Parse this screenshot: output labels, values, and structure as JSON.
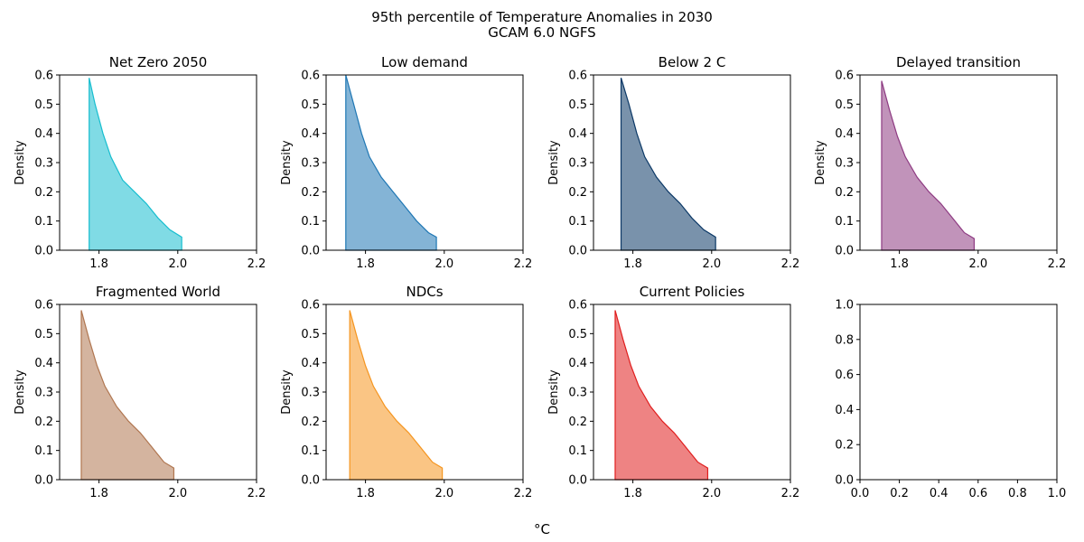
{
  "figure": {
    "suptitle_line1": "95th percentile of Temperature Anomalies in 2030",
    "suptitle_line2": "GCAM 6.0 NGFS",
    "xlabel": "°C"
  },
  "chart_data": [
    {
      "type": "area",
      "title": "Net Zero 2050",
      "ylabel": "Density",
      "color": "#17becf",
      "xlim": [
        1.7,
        2.2
      ],
      "ylim": [
        0,
        0.6
      ],
      "xticks": [
        1.8,
        2.0,
        2.2
      ],
      "yticks": [
        0.0,
        0.1,
        0.2,
        0.3,
        0.4,
        0.5,
        0.6
      ],
      "x": [
        1.775,
        1.79,
        1.81,
        1.83,
        1.86,
        1.89,
        1.92,
        1.95,
        1.98,
        2.01
      ],
      "y": [
        0.59,
        0.5,
        0.4,
        0.32,
        0.24,
        0.2,
        0.16,
        0.11,
        0.07,
        0.045
      ]
    },
    {
      "type": "area",
      "title": "Low demand",
      "ylabel": "Density",
      "color": "#1f77b4",
      "xlim": [
        1.7,
        2.2
      ],
      "ylim": [
        0,
        0.6
      ],
      "xticks": [
        1.8,
        2.0,
        2.2
      ],
      "yticks": [
        0.0,
        0.1,
        0.2,
        0.3,
        0.4,
        0.5,
        0.6
      ],
      "x": [
        1.75,
        1.77,
        1.79,
        1.81,
        1.84,
        1.87,
        1.9,
        1.93,
        1.96,
        1.98
      ],
      "y": [
        0.6,
        0.5,
        0.4,
        0.32,
        0.25,
        0.2,
        0.15,
        0.1,
        0.06,
        0.045
      ]
    },
    {
      "type": "area",
      "title": "Below 2 C",
      "ylabel": "Density",
      "color": "#0b3866",
      "xlim": [
        1.7,
        2.2
      ],
      "ylim": [
        0,
        0.6
      ],
      "xticks": [
        1.8,
        2.0,
        2.2
      ],
      "yticks": [
        0.0,
        0.1,
        0.2,
        0.3,
        0.4,
        0.5,
        0.6
      ],
      "x": [
        1.77,
        1.79,
        1.81,
        1.83,
        1.86,
        1.89,
        1.92,
        1.95,
        1.98,
        2.01
      ],
      "y": [
        0.59,
        0.5,
        0.4,
        0.32,
        0.25,
        0.2,
        0.16,
        0.11,
        0.07,
        0.045
      ]
    },
    {
      "type": "area",
      "title": "Delayed transition",
      "ylabel": "Density",
      "color": "#8e3b82",
      "xlim": [
        1.7,
        2.2
      ],
      "ylim": [
        0,
        0.6
      ],
      "xticks": [
        1.8,
        2.0,
        2.2
      ],
      "yticks": [
        0.0,
        0.1,
        0.2,
        0.3,
        0.4,
        0.5,
        0.6
      ],
      "x": [
        1.755,
        1.775,
        1.795,
        1.815,
        1.845,
        1.875,
        1.905,
        1.935,
        1.965,
        1.99
      ],
      "y": [
        0.58,
        0.48,
        0.39,
        0.32,
        0.25,
        0.2,
        0.16,
        0.11,
        0.06,
        0.04
      ]
    },
    {
      "type": "area",
      "title": "Fragmented World",
      "ylabel": "Density",
      "color": "#b07650",
      "xlim": [
        1.7,
        2.2
      ],
      "ylim": [
        0,
        0.6
      ],
      "xticks": [
        1.8,
        2.0,
        2.2
      ],
      "yticks": [
        0.0,
        0.1,
        0.2,
        0.3,
        0.4,
        0.5,
        0.6
      ],
      "x": [
        1.755,
        1.775,
        1.795,
        1.815,
        1.845,
        1.875,
        1.905,
        1.935,
        1.965,
        1.99
      ],
      "y": [
        0.58,
        0.48,
        0.39,
        0.32,
        0.25,
        0.2,
        0.16,
        0.11,
        0.06,
        0.04
      ]
    },
    {
      "type": "area",
      "title": "NDCs",
      "ylabel": "Density",
      "color": "#f5951f",
      "xlim": [
        1.7,
        2.2
      ],
      "ylim": [
        0,
        0.6
      ],
      "xticks": [
        1.8,
        2.0,
        2.2
      ],
      "yticks": [
        0.0,
        0.1,
        0.2,
        0.3,
        0.4,
        0.5,
        0.6
      ],
      "x": [
        1.76,
        1.78,
        1.8,
        1.82,
        1.85,
        1.88,
        1.91,
        1.94,
        1.97,
        1.995
      ],
      "y": [
        0.58,
        0.48,
        0.39,
        0.32,
        0.25,
        0.2,
        0.16,
        0.11,
        0.06,
        0.04
      ]
    },
    {
      "type": "area",
      "title": "Current Policies",
      "ylabel": "Density",
      "color": "#e01e1e",
      "xlim": [
        1.7,
        2.2
      ],
      "ylim": [
        0,
        0.6
      ],
      "xticks": [
        1.8,
        2.0,
        2.2
      ],
      "yticks": [
        0.0,
        0.1,
        0.2,
        0.3,
        0.4,
        0.5,
        0.6
      ],
      "x": [
        1.755,
        1.775,
        1.795,
        1.815,
        1.845,
        1.875,
        1.905,
        1.935,
        1.965,
        1.99
      ],
      "y": [
        0.58,
        0.48,
        0.39,
        0.32,
        0.25,
        0.2,
        0.16,
        0.11,
        0.06,
        0.04
      ]
    },
    {
      "type": "area",
      "title": "",
      "ylabel": "",
      "color": "#000000",
      "xlim": [
        0,
        1
      ],
      "ylim": [
        0,
        1
      ],
      "xticks": [
        0.0,
        0.2,
        0.4,
        0.6,
        0.8,
        1.0
      ],
      "yticks": [
        0.0,
        0.2,
        0.4,
        0.6,
        0.8,
        1.0
      ],
      "x": [],
      "y": []
    }
  ]
}
